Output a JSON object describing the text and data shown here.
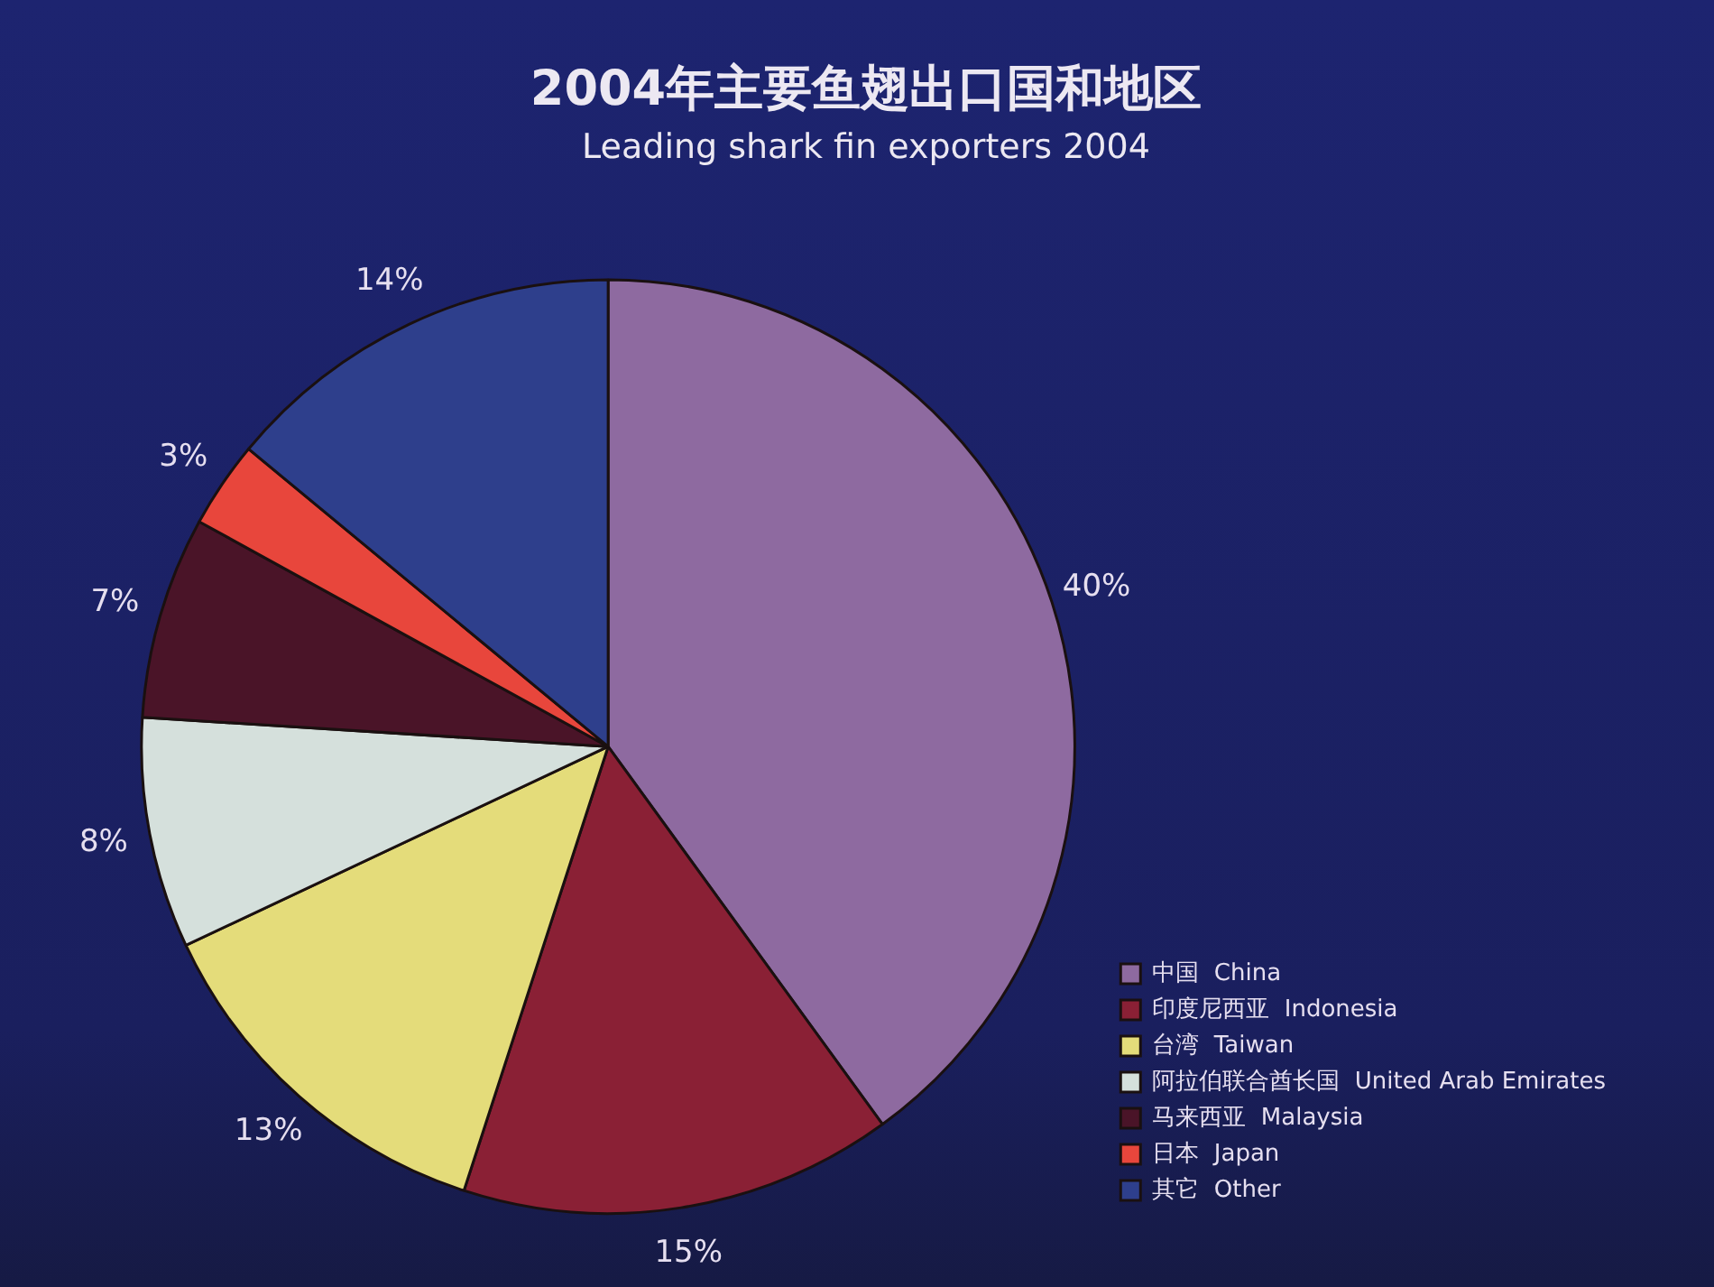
{
  "chart_data": {
    "type": "pie",
    "title": "2004年主要鱼翅出口国和地区",
    "subtitle": "Leading shark fin exporters 2004",
    "categories": [
      "中国  China",
      "印度尼西亚  Indonesia",
      "台湾  Taiwan",
      "阿拉伯联合酋长国  United Arab Emirates",
      "马来西亚  Malaysia",
      "日本  Japan",
      "其它  Other"
    ],
    "values": [
      40,
      15,
      13,
      8,
      7,
      3,
      14
    ],
    "value_labels": [
      "40%",
      "15%",
      "13%",
      "8%",
      "7%",
      "3%",
      "14%"
    ],
    "colors": [
      "#8e6aa0",
      "#8a2035",
      "#e4dc7a",
      "#d5e0dc",
      "#4a1428",
      "#e8463c",
      "#2e3f8c"
    ],
    "legend": "bottom right"
  }
}
